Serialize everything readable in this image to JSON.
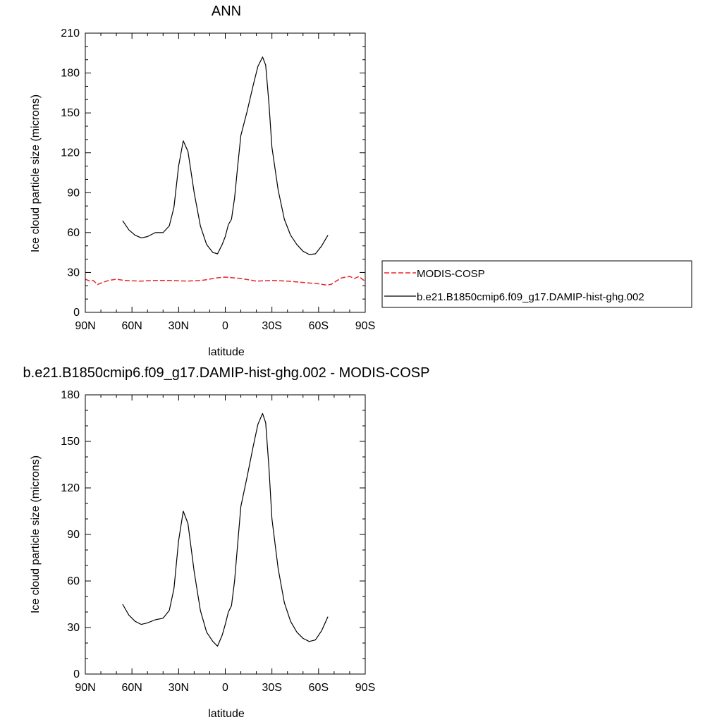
{
  "chart_data": [
    {
      "type": "line",
      "title": "ANN",
      "xlabel": "latitude",
      "ylabel": "Ice cloud particle size (microns)",
      "xlim": [
        90,
        -90
      ],
      "ylim": [
        0,
        210
      ],
      "x_ticks": [
        {
          "value": 90,
          "label": "90N"
        },
        {
          "value": 60,
          "label": "60N"
        },
        {
          "value": 30,
          "label": "30N"
        },
        {
          "value": 0,
          "label": "0"
        },
        {
          "value": -30,
          "label": "30S"
        },
        {
          "value": -60,
          "label": "60S"
        },
        {
          "value": -90,
          "label": "90S"
        }
      ],
      "y_ticks": [
        {
          "value": 0,
          "label": "0"
        },
        {
          "value": 30,
          "label": "30"
        },
        {
          "value": 60,
          "label": "60"
        },
        {
          "value": 90,
          "label": "90"
        },
        {
          "value": 120,
          "label": "120"
        },
        {
          "value": 150,
          "label": "150"
        },
        {
          "value": 180,
          "label": "180"
        },
        {
          "value": 210,
          "label": "210"
        }
      ],
      "legend": "right",
      "series": [
        {
          "name": "MODIS-COSP",
          "color": "#e8262b",
          "dash": true,
          "x": [
            90,
            87,
            85,
            82,
            80,
            75,
            70,
            65,
            55,
            45,
            35,
            25,
            15,
            5,
            0,
            -10,
            -20,
            -30,
            -40,
            -50,
            -60,
            -65,
            -68,
            -72,
            -75,
            -80,
            -83,
            -86,
            -88,
            -90
          ],
          "y": [
            25,
            23.5,
            24,
            21,
            22,
            24,
            25,
            24,
            23.5,
            24,
            24,
            23.5,
            24,
            26,
            26.5,
            25.5,
            23.5,
            24,
            23.5,
            22.5,
            21.5,
            20.5,
            21,
            24,
            26,
            27,
            25.5,
            27,
            25,
            23.5
          ]
        },
        {
          "name": "b.e21.B1850cmip6.f09_g17.DAMIP-hist-ghg.002",
          "color": "#000000",
          "dash": false,
          "x": [
            66,
            62,
            58,
            54,
            50,
            45,
            40,
            36,
            33,
            30,
            27,
            24,
            20,
            16,
            12,
            8,
            5,
            2,
            0,
            -2,
            -4,
            -6,
            -8,
            -10,
            -14,
            -18,
            -21,
            -24,
            -26,
            -28,
            -30,
            -34,
            -38,
            -42,
            -46,
            -50,
            -54,
            -58,
            -62,
            -66
          ],
          "y": [
            69,
            62,
            58,
            56,
            57,
            60,
            60,
            65,
            79,
            110,
            129,
            121,
            90,
            65,
            51,
            45,
            44,
            51,
            57,
            66,
            70,
            86,
            110,
            133,
            151,
            171,
            185,
            192,
            186,
            158,
            124,
            92,
            70,
            58,
            51,
            46,
            43.5,
            44,
            50,
            58
          ]
        }
      ]
    },
    {
      "type": "line",
      "title": "b.e21.B1850cmip6.f09_g17.DAMIP-hist-ghg.002 - MODIS-COSP",
      "xlabel": "latitude",
      "ylabel": "Ice cloud particle size (microns)",
      "xlim": [
        90,
        -90
      ],
      "ylim": [
        0,
        180
      ],
      "x_ticks": [
        {
          "value": 90,
          "label": "90N"
        },
        {
          "value": 60,
          "label": "60N"
        },
        {
          "value": 30,
          "label": "30N"
        },
        {
          "value": 0,
          "label": "0"
        },
        {
          "value": -30,
          "label": "30S"
        },
        {
          "value": -60,
          "label": "60S"
        },
        {
          "value": -90,
          "label": "90S"
        }
      ],
      "y_ticks": [
        {
          "value": 0,
          "label": "0"
        },
        {
          "value": 30,
          "label": "30"
        },
        {
          "value": 60,
          "label": "60"
        },
        {
          "value": 90,
          "label": "90"
        },
        {
          "value": 120,
          "label": "120"
        },
        {
          "value": 150,
          "label": "150"
        },
        {
          "value": 180,
          "label": "180"
        }
      ],
      "series": [
        {
          "color": "#000000",
          "dash": false,
          "x": [
            66,
            62,
            58,
            54,
            50,
            45,
            40,
            36,
            33,
            30,
            27,
            24,
            20,
            16,
            12,
            8,
            5,
            2,
            0,
            -2,
            -4,
            -6,
            -8,
            -10,
            -14,
            -18,
            -21,
            -24,
            -26,
            -28,
            -30,
            -34,
            -38,
            -42,
            -46,
            -50,
            -54,
            -58,
            -62,
            -66
          ],
          "y": [
            45,
            38,
            34,
            32,
            33,
            35,
            36,
            41,
            55,
            86,
            105,
            97,
            66,
            41,
            27,
            21,
            18,
            25,
            32,
            40,
            44,
            60,
            84,
            108,
            127,
            147,
            161,
            168,
            162,
            134,
            100,
            68,
            46,
            34,
            27,
            23,
            21,
            22,
            28,
            37
          ]
        }
      ]
    }
  ]
}
